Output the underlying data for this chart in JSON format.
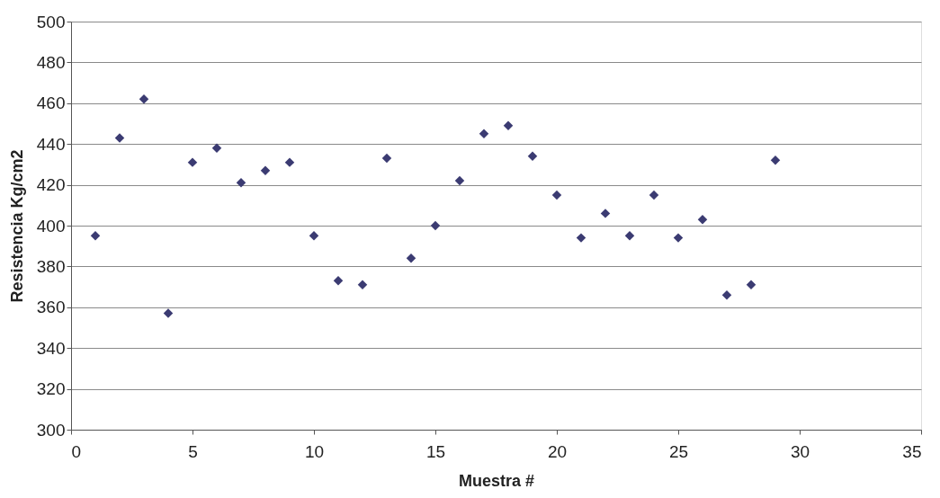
{
  "chart_data": {
    "type": "scatter",
    "xlabel": "Muestra #",
    "ylabel": "Resistencia  Kg/cm2",
    "x": [
      1,
      2,
      3,
      4,
      5,
      6,
      7,
      8,
      9,
      10,
      11,
      12,
      13,
      14,
      15,
      16,
      17,
      18,
      19,
      20,
      21,
      22,
      23,
      24,
      25,
      26,
      27,
      28,
      29
    ],
    "series": [
      {
        "color": "#3b3b72",
        "values": [
          395,
          443,
          462,
          357,
          431,
          438,
          421,
          427,
          431,
          395,
          373,
          371,
          433,
          384,
          400,
          422,
          445,
          449,
          434,
          415,
          394,
          406,
          395,
          415,
          394,
          403,
          366,
          371,
          432
        ]
      }
    ],
    "xlim": [
      0,
      35
    ],
    "xticks": [
      0,
      5,
      10,
      15,
      20,
      25,
      30,
      35
    ],
    "ylim": [
      300,
      500
    ],
    "yticks": [
      300,
      320,
      340,
      360,
      380,
      400,
      420,
      440,
      460,
      480,
      500
    ],
    "grid": "y",
    "marker": "diamond"
  }
}
